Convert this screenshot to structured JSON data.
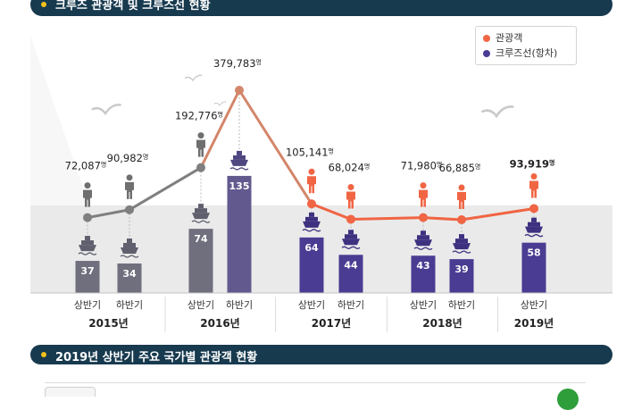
{
  "header": {
    "title": "크루즈 관광객 및 크루즈선 현황",
    "section2_title": "2019년 상반기 주요 국가별 관광객 현황"
  },
  "legend": {
    "tourists": "관광객",
    "ships": "크루즈선(항차)"
  },
  "colors": {
    "title_bg": "#173a4f",
    "accent_dot": "#f3c21a",
    "tourist_line_grey": "#7f7f7f",
    "tourist_line_peak": "#d3866a",
    "tourist_line_recent": "#f06544",
    "ship_bar_grey": "#6f6f7e",
    "ship_bar_mid": "#625a8e",
    "ship_bar_recent": "#4a3c92"
  },
  "chart_data": {
    "type": "line+bar",
    "title": "크루즈 관광객 및 크루즈선 현황",
    "categories": [
      "상반기",
      "하반기",
      "상반기",
      "하반기",
      "상반기",
      "하반기",
      "상반기",
      "하반기",
      "상반기"
    ],
    "years": [
      {
        "label": "2015년",
        "span": [
          0,
          1
        ]
      },
      {
        "label": "2016년",
        "span": [
          2,
          3
        ]
      },
      {
        "label": "2017년",
        "span": [
          4,
          5
        ]
      },
      {
        "label": "2018년",
        "span": [
          6,
          7
        ]
      },
      {
        "label": "2019년",
        "span": [
          8,
          8
        ]
      }
    ],
    "series": [
      {
        "name": "관광객",
        "type": "line",
        "unit": "명",
        "values": [
          72087,
          90982,
          192776,
          379783,
          105141,
          68024,
          71980,
          66885,
          93919
        ],
        "labels": [
          "72,087",
          "90,982",
          "192,776",
          "379,783",
          "105,141",
          "68,024",
          "71,980",
          "66,885",
          "93,919"
        ]
      },
      {
        "name": "크루즈선(항차)",
        "type": "bar",
        "values": [
          37,
          34,
          74,
          135,
          64,
          44,
          43,
          39,
          58
        ],
        "labels": [
          "37",
          "34",
          "74",
          "135",
          "64",
          "44",
          "43",
          "39",
          "58"
        ]
      }
    ]
  }
}
